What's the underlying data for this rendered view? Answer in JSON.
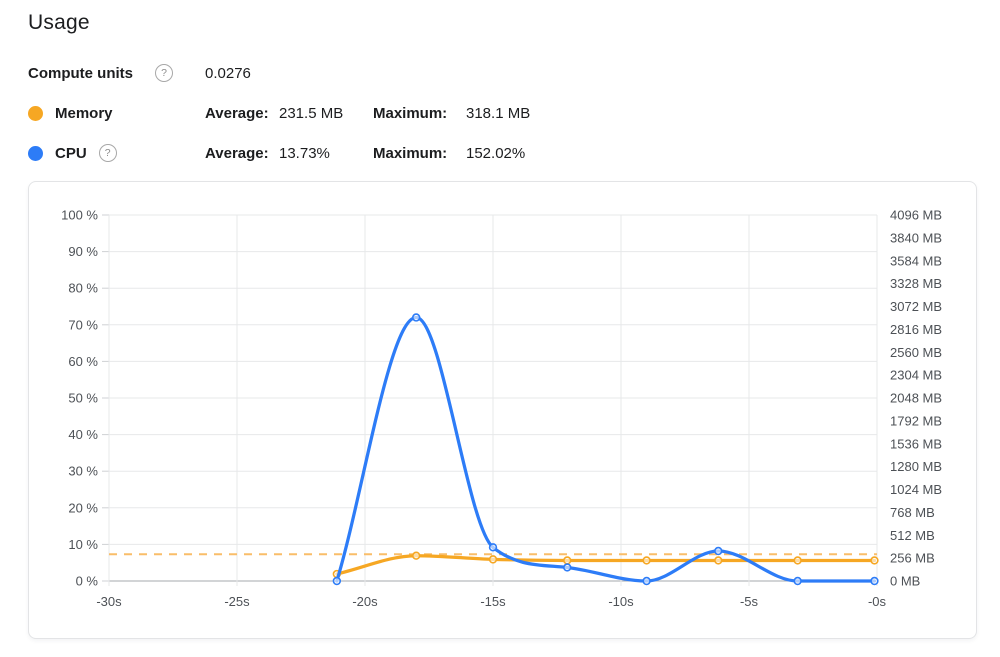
{
  "page": {
    "title": "Usage"
  },
  "stats": {
    "compute_units": {
      "label": "Compute units",
      "value": "0.0276"
    },
    "memory": {
      "label": "Memory",
      "average_label": "Average:",
      "average_value": "231.5 MB",
      "maximum_label": "Maximum:",
      "maximum_value": "318.1 MB"
    },
    "cpu": {
      "label": "CPU",
      "average_label": "Average:",
      "average_value": "13.73%",
      "maximum_label": "Maximum:",
      "maximum_value": "152.02%"
    }
  },
  "icons": {
    "help": "?"
  },
  "colors": {
    "memory": "#F6A723",
    "cpu": "#2D7CF7",
    "memory_dashed": "#F9BD69",
    "grid": "#E7E8EA",
    "axis_zero_line": "#A6A9AD",
    "tick_mark": "#CFD1D4",
    "axis_text": "#4D5156"
  },
  "chart_data": {
    "type": "line",
    "x_label_unit": "seconds ago",
    "x_ticks": [
      "-30s",
      "-25s",
      "-20s",
      "-15s",
      "-10s",
      "-5s",
      "-0s"
    ],
    "x_range_seconds": [
      -30,
      0
    ],
    "left_axis": {
      "unit": "%",
      "range": [
        0,
        100
      ],
      "tick_labels": [
        "100 %",
        "90 %",
        "80 %",
        "70 %",
        "60 %",
        "50 %",
        "40 %",
        "30 %",
        "20 %",
        "10 %",
        "0 %"
      ]
    },
    "right_axis": {
      "unit": "MB",
      "range": [
        0,
        4096
      ],
      "tick_labels": [
        "4096 MB",
        "3840 MB",
        "3584 MB",
        "3328 MB",
        "3072 MB",
        "2816 MB",
        "2560 MB",
        "2304 MB",
        "2048 MB",
        "1792 MB",
        "1536 MB",
        "1280 MB",
        "1024 MB",
        "768 MB",
        "512 MB",
        "256 MB",
        "0 MB"
      ]
    },
    "x_seconds": [
      -21.1,
      -18,
      -15,
      -12.1,
      -9,
      -6.2,
      -3.1,
      -0.1
    ],
    "series": [
      {
        "name": "Memory",
        "axis": "right",
        "unit": "MB",
        "color": "#F6A723",
        "values_mb": [
          78,
          283,
          242,
          230,
          230,
          230,
          230,
          230
        ]
      },
      {
        "name": "CPU",
        "axis": "left",
        "unit": "%",
        "color": "#2D7CF7",
        "values_percent": [
          0,
          72,
          9.2,
          3.7,
          0,
          8.2,
          0,
          0
        ]
      }
    ],
    "reference_line": {
      "style": "dashed",
      "color": "#F9BD69",
      "left_axis_percent": 7.3
    }
  }
}
